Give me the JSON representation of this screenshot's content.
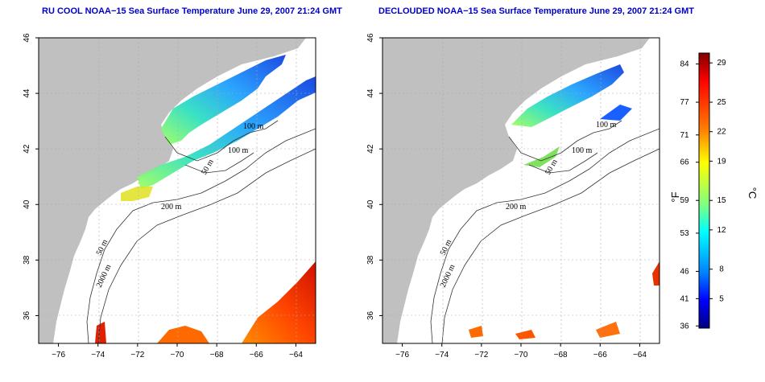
{
  "panels": [
    {
      "title": "RU COOL NOAA−15 Sea Surface Temperature June 29, 2007 21:24 GMT",
      "cloud_masked": false
    },
    {
      "title": "DECLOUDED NOAA−15 Sea Surface Temperature June 29, 2007 21:24 GMT",
      "cloud_masked": true
    }
  ],
  "axes": {
    "x_ticks": [
      "−76",
      "−74",
      "−72",
      "−70",
      "−68",
      "−66",
      "−64"
    ],
    "x_values": [
      -76,
      -74,
      -72,
      -70,
      -68,
      -66,
      -64
    ],
    "y_ticks": [
      "36",
      "38",
      "40",
      "42",
      "44",
      "46"
    ],
    "y_values": [
      36,
      38,
      40,
      42,
      44,
      46
    ],
    "lon_range": [
      -77,
      -63
    ],
    "lat_range": [
      35,
      46
    ],
    "grid": "dotted"
  },
  "contour_labels": {
    "panel1": [
      "100 m",
      "100 m",
      "50 m",
      "200 m",
      "50 m",
      "2000 m"
    ],
    "panel2": [
      "100 m",
      "100 m",
      "50 m",
      "200 m",
      "50 m",
      "2000 m"
    ]
  },
  "colorbar": {
    "fahrenheit_ticks": [
      "84",
      "77",
      "71",
      "66",
      "59",
      "53",
      "46",
      "41",
      "36"
    ],
    "celsius_ticks": [
      "29",
      "25",
      "22",
      "19",
      "15",
      "12",
      "8",
      "5"
    ],
    "fahrenheit_label": "°F",
    "celsius_label": "°C",
    "range_c": [
      2,
      30
    ],
    "colors": [
      "#800000",
      "#ff0000",
      "#ff8000",
      "#ffff00",
      "#80ff80",
      "#00ffff",
      "#0080ff",
      "#0000ff",
      "#000080"
    ]
  },
  "colors": {
    "land": "#c0c0c0",
    "water": "#ffffff",
    "title": "#0000cc"
  }
}
